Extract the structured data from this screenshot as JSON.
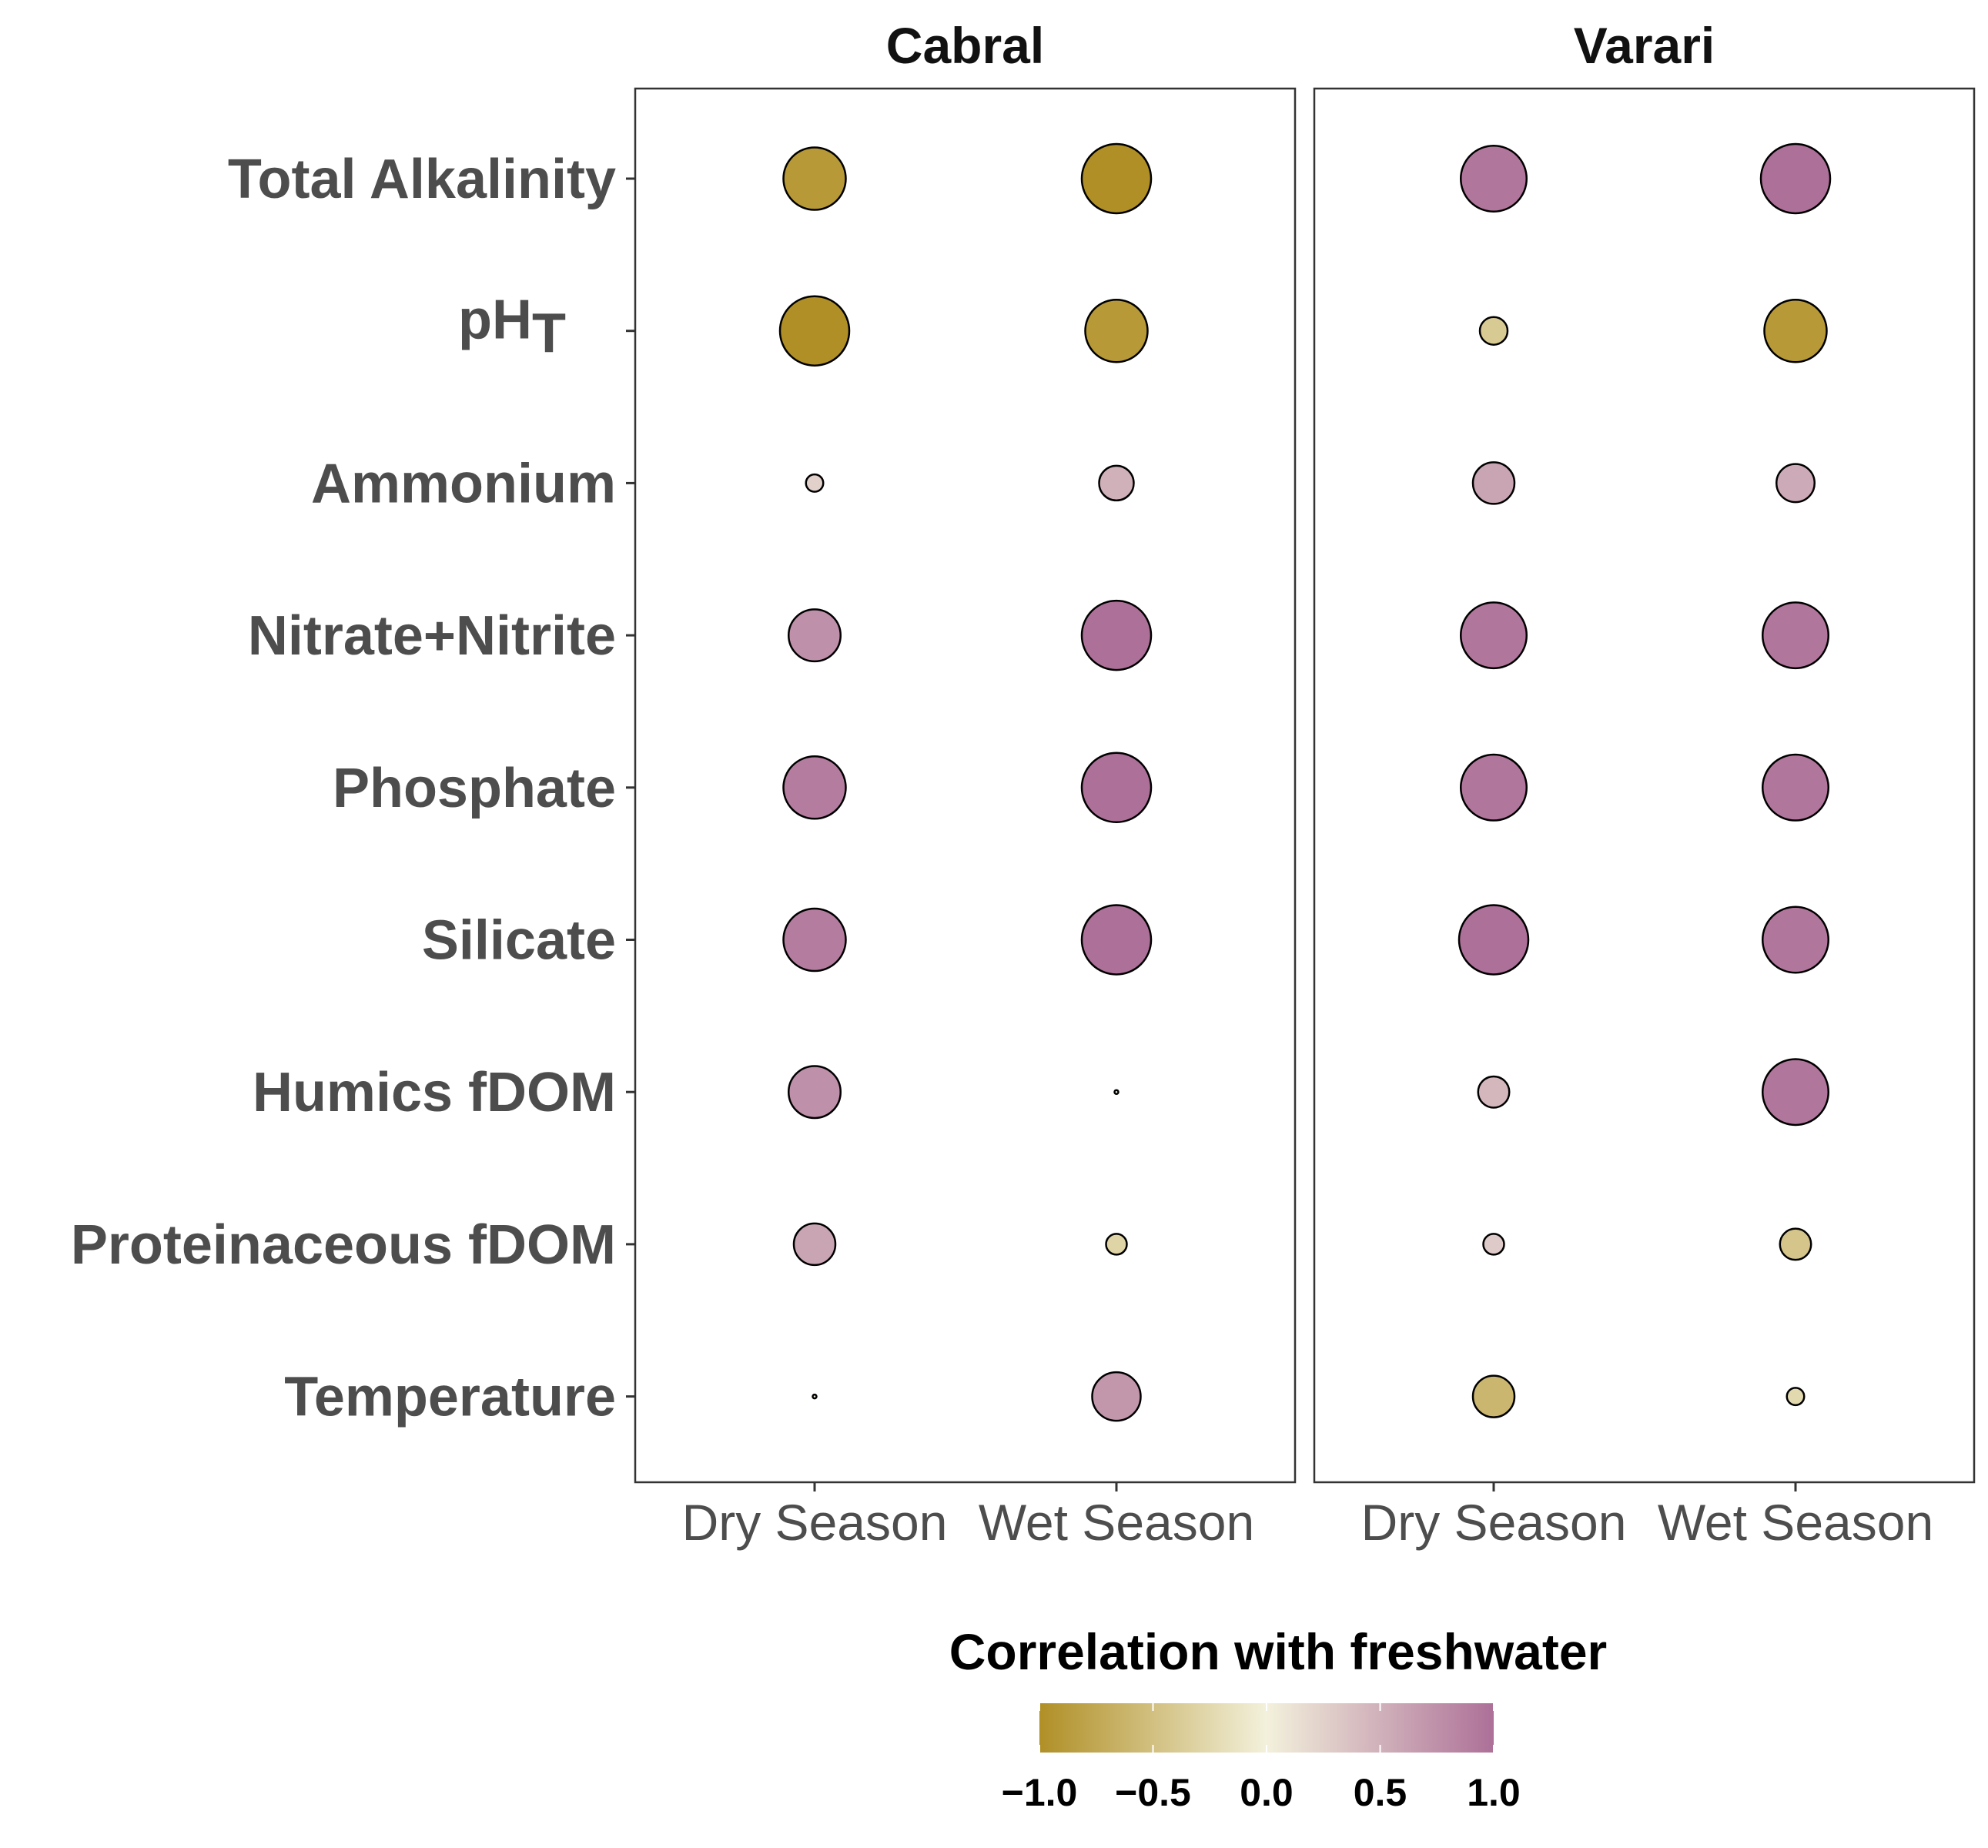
{
  "chart_data": {
    "type": "bubble-matrix",
    "facets": [
      "Cabral",
      "Varari"
    ],
    "categories": [
      "Dry Season",
      "Wet Season"
    ],
    "variables": [
      "Total Alkalinity",
      "pH_T",
      "Ammonium",
      "Nitrate+Nitrite",
      "Phosphate",
      "Silicate",
      "Humics fDOM",
      "Proteinaceous fDOM",
      "Temperature"
    ],
    "variable_labels": {
      "Total Alkalinity": "Total Alkalinity",
      "pH_T": "pH",
      "pH_T_subscript": "T",
      "Ammonium": "Ammonium",
      "Nitrate+Nitrite": "Nitrate+Nitrite",
      "Phosphate": "Phosphate",
      "Silicate": "Silicate",
      "Humics fDOM": "Humics fDOM",
      "Proteinaceous fDOM": "Proteinaceous fDOM",
      "Temperature": "Temperature"
    },
    "values": {
      "Cabral": {
        "Dry Season": [
          -0.9,
          -1.0,
          0.25,
          0.75,
          0.9,
          0.9,
          0.75,
          0.6,
          0.05
        ],
        "Wet Season": [
          -1.0,
          -0.9,
          0.5,
          1.0,
          1.0,
          1.0,
          0.02,
          -0.3,
          0.7
        ]
      },
      "Varari": {
        "Dry Season": [
          0.95,
          -0.4,
          0.6,
          0.95,
          0.95,
          1.0,
          0.45,
          0.3,
          -0.6
        ],
        "Wet Season": [
          1.0,
          -0.9,
          0.55,
          0.95,
          0.95,
          0.95,
          0.95,
          -0.45,
          -0.25
        ]
      }
    },
    "color_scale": {
      "title": "Correlation with freshwater",
      "domain": [
        -1.0,
        0.0,
        1.0
      ],
      "colors": [
        "#b08f26",
        "#f3f1dc",
        "#ad7098"
      ],
      "ticks": [
        -1.0,
        -0.5,
        0.0,
        0.5,
        1.0
      ],
      "tick_labels": [
        "−1.0",
        "−0.5",
        "0.0",
        "0.5",
        "1.0"
      ]
    },
    "size_encodes": "absolute correlation",
    "grid": false,
    "legend_position": "bottom"
  }
}
